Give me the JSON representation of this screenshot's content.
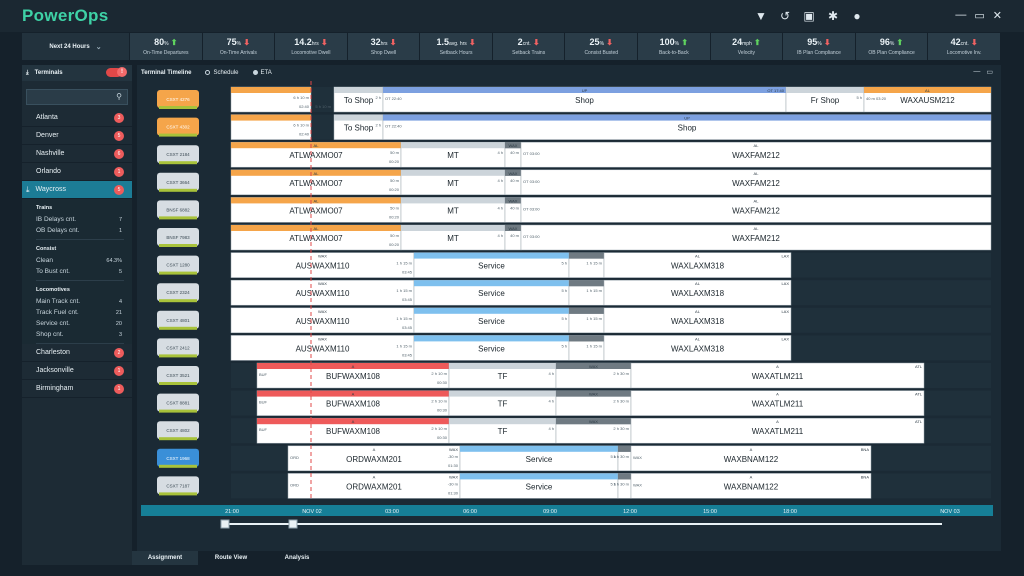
{
  "app": {
    "title": "PowerOps"
  },
  "window": {
    "min": "—",
    "restore": "▭",
    "close": "✕"
  },
  "kpis": {
    "period": "Next 24 Hours",
    "items": [
      {
        "value": "80",
        "unit": "%",
        "trend": "up",
        "label": "On-Time Departures"
      },
      {
        "value": "75",
        "unit": "%",
        "trend": "down",
        "label": "On-Time Arrivals"
      },
      {
        "value": "14.2",
        "unit": "hrs",
        "trend": "down",
        "label": "Locomotive Dwell",
        "alert": true
      },
      {
        "value": "32",
        "unit": "hrs",
        "trend": "down",
        "label": "Shop Dwell",
        "alert": true
      },
      {
        "value": "1.5",
        "unit": "avg. hrs",
        "trend": "down",
        "label": "Setback Hours",
        "alert": true
      },
      {
        "value": "2",
        "unit": "cnt.",
        "trend": "down",
        "label": "Setback Trains",
        "alert": true
      },
      {
        "value": "25",
        "unit": "%",
        "trend": "down",
        "label": "Consist Busted"
      },
      {
        "value": "100",
        "unit": "%",
        "trend": "up",
        "label": "Back-to-Back"
      },
      {
        "value": "24",
        "unit": "mph",
        "trend": "up",
        "label": "Velocity"
      },
      {
        "value": "95",
        "unit": "%",
        "trend": "down",
        "label": "IB Plan Compliance"
      },
      {
        "value": "96",
        "unit": "%",
        "trend": "up",
        "label": "OB Plan Compliance"
      },
      {
        "value": "42",
        "unit": "cnt.",
        "trend": "down",
        "label": "Locomotive Inv."
      }
    ]
  },
  "sidebar": {
    "header": "Terminals",
    "toggle_badge": "!",
    "cities_top": [
      {
        "name": "Atlanta",
        "badge": "3"
      },
      {
        "name": "Denver",
        "badge": "5"
      },
      {
        "name": "Nashville",
        "badge": "6"
      },
      {
        "name": "Orlando",
        "badge": "1"
      }
    ],
    "selected": {
      "name": "Waycross",
      "badge": "5"
    },
    "sections": [
      {
        "title": "Trains",
        "rows": [
          {
            "label": "IB Delays cnt.",
            "value": "7"
          },
          {
            "label": "OB Delays cnt.",
            "value": "1"
          }
        ]
      },
      {
        "title": "Consist",
        "rows": [
          {
            "label": "Clean",
            "value": "64.3%"
          },
          {
            "label": "To Bust cnt.",
            "value": "5"
          }
        ]
      },
      {
        "title": "Locomotives",
        "rows": [
          {
            "label": "Main Track cnt.",
            "value": "4"
          },
          {
            "label": "Track Fuel cnt.",
            "value": "21"
          },
          {
            "label": "Service cnt.",
            "value": "20"
          },
          {
            "label": "Shop cnt.",
            "value": "3"
          }
        ]
      }
    ],
    "cities_bottom": [
      {
        "name": "Charleston",
        "badge": "2"
      },
      {
        "name": "Jacksonville",
        "badge": "1"
      },
      {
        "name": "Birmingham",
        "badge": "1"
      }
    ]
  },
  "timeline": {
    "title": "Terminal Timeline",
    "mode_schedule": "Schedule",
    "mode_eta": "ETA",
    "ticks": [
      "21:00",
      "NOV 02",
      "03:00",
      "06:00",
      "09:00",
      "12:00",
      "15:00",
      "18:00",
      "NOV 03"
    ],
    "rows": [
      {
        "loco": "CSXT 4276",
        "bars": [
          {
            "t": "",
            "s": 0,
            "e": 80,
            "c": "#f5a54a",
            "sub": "6 h 10 m",
            "sub2": "02:40",
            "sub3": "5 h 10 m"
          },
          {
            "t": "To Shop",
            "s": 103,
            "e": 152,
            "c": "#ccd4da",
            "sub": "2 h"
          },
          {
            "t": "Shop",
            "s": 152,
            "e": 555,
            "c": "#7ca0e0",
            "top": "UP",
            "l": "OT 22:40",
            "r": "OT 17:40"
          },
          {
            "t": "Fr Shop",
            "s": 555,
            "e": 633,
            "c": "#ccd4da",
            "sub": "5 h"
          },
          {
            "t": "WAXAUSM212",
            "s": 633,
            "e": 760,
            "c": "#f5a54a",
            "top": "AL",
            "l": "40 m 03:20"
          }
        ]
      },
      {
        "loco": "CSXT 4302",
        "bars": [
          {
            "t": "",
            "s": 0,
            "e": 80,
            "c": "#f5a54a",
            "sub": "6 h 10 m",
            "sub2": "02:40"
          },
          {
            "t": "To Shop",
            "s": 103,
            "e": 152,
            "c": "#ccd4da",
            "sub": "2 h"
          },
          {
            "t": "Shop",
            "s": 152,
            "e": 760,
            "c": "#7ca0e0",
            "top": "UP",
            "l": "OT 22:40"
          }
        ]
      },
      {
        "loco": "CSXT 2184",
        "bars": [
          {
            "t": "ATLWAXMO07",
            "s": 0,
            "e": 170,
            "c": "#f5a54a",
            "top": "AL",
            "sub": "50 m",
            "sub2": "00:20"
          },
          {
            "t": "MT",
            "s": 170,
            "e": 274,
            "c": "#ccd4da",
            "sub": "4 h"
          },
          {
            "t": "",
            "s": 274,
            "e": 290,
            "c": "#6f7a82",
            "top": "WAX",
            "sub": "40 m"
          },
          {
            "t": "WAXFAM212",
            "s": 290,
            "e": 760,
            "c": "#ffffff",
            "top": "AL",
            "l": "OT 03:00"
          }
        ]
      },
      {
        "loco": "CSXT 3664",
        "bars": [
          {
            "t": "ATLWAXMO07",
            "s": 0,
            "e": 170,
            "c": "#f5a54a",
            "top": "AL",
            "sub": "50 m",
            "sub2": "00:20"
          },
          {
            "t": "MT",
            "s": 170,
            "e": 274,
            "c": "#ccd4da",
            "sub": "4 h"
          },
          {
            "t": "",
            "s": 274,
            "e": 290,
            "c": "#6f7a82",
            "top": "WAX",
            "sub": "40 m"
          },
          {
            "t": "WAXFAM212",
            "s": 290,
            "e": 760,
            "c": "#ffffff",
            "top": "AL",
            "l": "OT 03:00"
          }
        ]
      },
      {
        "loco": "BNSF 6882",
        "bars": [
          {
            "t": "ATLWAXMO07",
            "s": 0,
            "e": 170,
            "c": "#f5a54a",
            "top": "AL",
            "sub": "50 m",
            "sub2": "00:20"
          },
          {
            "t": "MT",
            "s": 170,
            "e": 274,
            "c": "#ccd4da",
            "sub": "4 h"
          },
          {
            "t": "",
            "s": 274,
            "e": 290,
            "c": "#6f7a82",
            "top": "WAX",
            "sub": "40 m"
          },
          {
            "t": "WAXFAM212",
            "s": 290,
            "e": 760,
            "c": "#ffffff",
            "top": "AL",
            "l": "OT 03:00"
          }
        ]
      },
      {
        "loco": "BNSF 7983",
        "bars": [
          {
            "t": "ATLWAXMO07",
            "s": 0,
            "e": 170,
            "c": "#f5a54a",
            "top": "AL",
            "sub": "50 m",
            "sub2": "00:20"
          },
          {
            "t": "MT",
            "s": 170,
            "e": 274,
            "c": "#ccd4da",
            "sub": "4 h"
          },
          {
            "t": "",
            "s": 274,
            "e": 290,
            "c": "#6f7a82",
            "top": "WAX",
            "sub": "40 m"
          },
          {
            "t": "WAXFAM212",
            "s": 290,
            "e": 760,
            "c": "#ffffff",
            "top": "AL",
            "l": "OT 03:00"
          }
        ]
      },
      {
        "loco": "CSXT 1280",
        "bars": [
          {
            "t": "AUSWAXM110",
            "s": 0,
            "e": 183,
            "c": "#ffffff",
            "top": "WAX",
            "sub": "1 h 15 m",
            "sub2": "03:45"
          },
          {
            "t": "Service",
            "s": 183,
            "e": 338,
            "c": "#7ec0ee",
            "sub": "5 h"
          },
          {
            "t": "",
            "s": 338,
            "e": 373,
            "c": "#6f7a82",
            "sub": "1 h 15 m"
          },
          {
            "t": "WAXLAXM318",
            "s": 373,
            "e": 560,
            "c": "#ffffff",
            "top": "AL",
            "r": "LAX"
          }
        ]
      },
      {
        "loco": "CSXT 2324",
        "bars": [
          {
            "t": "AUSWAXM110",
            "s": 0,
            "e": 183,
            "c": "#ffffff",
            "top": "WAX",
            "sub": "1 h 15 m",
            "sub2": "03:45"
          },
          {
            "t": "Service",
            "s": 183,
            "e": 338,
            "c": "#7ec0ee",
            "sub": "5 h"
          },
          {
            "t": "",
            "s": 338,
            "e": 373,
            "c": "#6f7a82",
            "sub": "1 h 15 m"
          },
          {
            "t": "WAXLAXM318",
            "s": 373,
            "e": 560,
            "c": "#ffffff",
            "top": "AL",
            "r": "LAX"
          }
        ]
      },
      {
        "loco": "CSXT 4801",
        "bars": [
          {
            "t": "AUSWAXM110",
            "s": 0,
            "e": 183,
            "c": "#ffffff",
            "top": "WAX",
            "sub": "1 h 15 m",
            "sub2": "03:45"
          },
          {
            "t": "Service",
            "s": 183,
            "e": 338,
            "c": "#7ec0ee",
            "sub": "5 h"
          },
          {
            "t": "",
            "s": 338,
            "e": 373,
            "c": "#6f7a82",
            "sub": "1 h 15 m"
          },
          {
            "t": "WAXLAXM318",
            "s": 373,
            "e": 560,
            "c": "#ffffff",
            "top": "AL",
            "r": "LAX"
          }
        ]
      },
      {
        "loco": "CSXT 2412",
        "bars": [
          {
            "t": "AUSWAXM110",
            "s": 0,
            "e": 183,
            "c": "#ffffff",
            "top": "WAX",
            "sub": "1 h 15 m",
            "sub2": "03:45"
          },
          {
            "t": "Service",
            "s": 183,
            "e": 338,
            "c": "#7ec0ee",
            "sub": "5 h"
          },
          {
            "t": "",
            "s": 338,
            "e": 373,
            "c": "#6f7a82",
            "sub": "1 h 15 m"
          },
          {
            "t": "WAXLAXM318",
            "s": 373,
            "e": 560,
            "c": "#ffffff",
            "top": "AL",
            "r": "LAX"
          }
        ]
      },
      {
        "loco": "CSXT 3521",
        "bars": [
          {
            "t": "BUFWAXM108",
            "s": 26,
            "e": 218,
            "c": "#ee5a5a",
            "top": "A",
            "l": "BUF",
            "sub": "2 h 10 m",
            "sub2": "00:30"
          },
          {
            "t": "TF",
            "s": 218,
            "e": 325,
            "c": "#ccd4da",
            "sub": "4 h"
          },
          {
            "t": "",
            "s": 325,
            "e": 400,
            "c": "#6f7a82",
            "top": "WAX",
            "sub": "2 h 30 m"
          },
          {
            "t": "WAXATLM211",
            "s": 400,
            "e": 693,
            "c": "#ffffff",
            "top": "A",
            "r": "ATL"
          }
        ]
      },
      {
        "loco": "CSXT 8881",
        "bars": [
          {
            "t": "BUFWAXM108",
            "s": 26,
            "e": 218,
            "c": "#ee5a5a",
            "top": "A",
            "l": "BUF",
            "sub": "2 h 10 m",
            "sub2": "00:30"
          },
          {
            "t": "TF",
            "s": 218,
            "e": 325,
            "c": "#ccd4da",
            "sub": "4 h"
          },
          {
            "t": "",
            "s": 325,
            "e": 400,
            "c": "#6f7a82",
            "top": "WAX",
            "sub": "2 h 30 m"
          },
          {
            "t": "WAXATLM211",
            "s": 400,
            "e": 693,
            "c": "#ffffff",
            "top": "A",
            "r": "ATL"
          }
        ]
      },
      {
        "loco": "CSXT 4802",
        "bars": [
          {
            "t": "BUFWAXM108",
            "s": 26,
            "e": 218,
            "c": "#ee5a5a",
            "top": "A",
            "l": "BUF",
            "sub": "2 h 10 m",
            "sub2": "00:30"
          },
          {
            "t": "TF",
            "s": 218,
            "e": 325,
            "c": "#ccd4da",
            "sub": "4 h"
          },
          {
            "t": "",
            "s": 325,
            "e": 400,
            "c": "#6f7a82",
            "top": "WAX",
            "sub": "2 h 30 m"
          },
          {
            "t": "WAXATLM211",
            "s": 400,
            "e": 693,
            "c": "#ffffff",
            "top": "A",
            "r": "ATL"
          }
        ]
      },
      {
        "loco": "CSXT 1968",
        "bars": [
          {
            "t": "ORDWAXM201",
            "s": 57,
            "e": 229,
            "c": "#ffffff",
            "top": "A",
            "l": "ORD",
            "r": "WAX",
            "sub": "-30 m",
            "sub2": "01:30"
          },
          {
            "t": "Service",
            "s": 229,
            "e": 387,
            "c": "#7ec0ee",
            "sub": "5 h"
          },
          {
            "t": "",
            "s": 387,
            "e": 400,
            "c": "#6f7a82",
            "sub": "1 h 30 m"
          },
          {
            "t": "WAXBNAM122",
            "s": 400,
            "e": 640,
            "c": "#ffffff",
            "top": "A",
            "l": "WAX",
            "r": "BNA"
          }
        ]
      },
      {
        "loco": "CSXT 7187",
        "bars": [
          {
            "t": "ORDWAXM201",
            "s": 57,
            "e": 229,
            "c": "#ffffff",
            "top": "A",
            "l": "ORD",
            "r": "WAX",
            "sub": "-30 m",
            "sub2": "01:30"
          },
          {
            "t": "Service",
            "s": 229,
            "e": 387,
            "c": "#7ec0ee",
            "sub": "5 h"
          },
          {
            "t": "",
            "s": 387,
            "e": 400,
            "c": "#6f7a82",
            "sub": "1 h 30 m"
          },
          {
            "t": "WAXBNAM122",
            "s": 400,
            "e": 640,
            "c": "#ffffff",
            "top": "A",
            "l": "WAX",
            "r": "BNA"
          }
        ]
      }
    ]
  },
  "tabs": {
    "assignment": "Assignment",
    "route_view": "Route View",
    "analysis": "Analysis"
  },
  "colors": {
    "brand": "#3ed2a6",
    "accent": "#1c7c96",
    "alert": "#ee5a5a",
    "loco_selected": "#3a8fd8"
  }
}
